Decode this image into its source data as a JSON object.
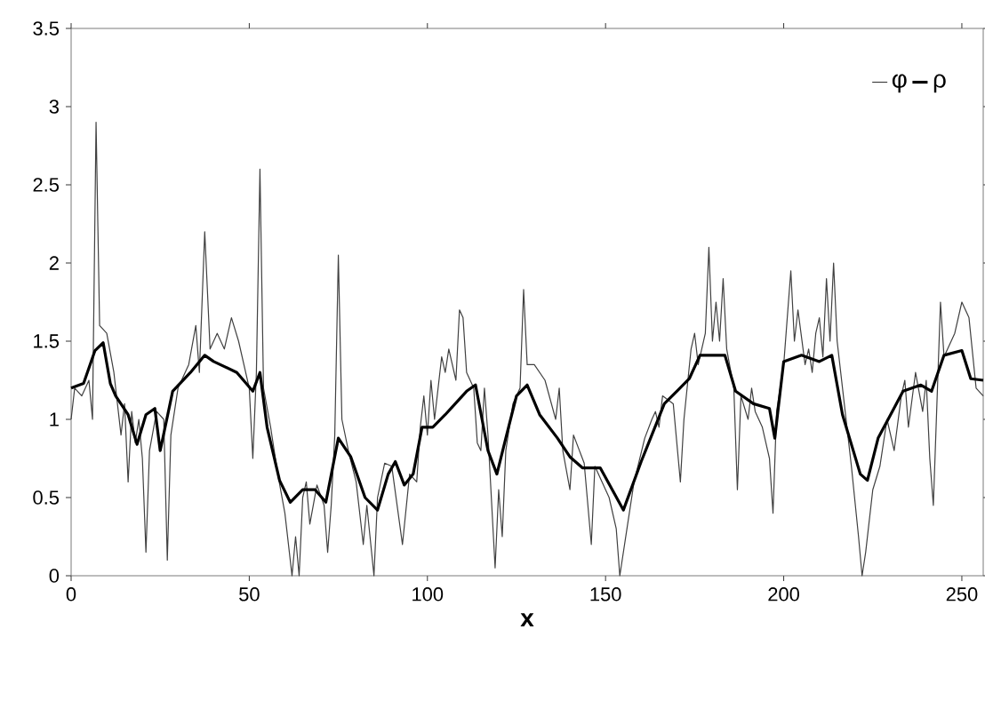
{
  "chart_data": {
    "type": "line",
    "xlabel": "x",
    "xlim": [
      0,
      256
    ],
    "ylim": [
      0,
      3.5
    ],
    "xticks": [
      0,
      50,
      100,
      150,
      200,
      250
    ],
    "yticks": [
      0,
      0.5,
      1,
      1.5,
      2,
      2.5,
      3,
      3.5
    ],
    "grid": false,
    "legend": "top right",
    "marker": "none",
    "line_style": "solid",
    "series": [
      {
        "name": "φ",
        "color": "#404040",
        "x": [
          0,
          1,
          3,
          5,
          6,
          7,
          8,
          10,
          12,
          14,
          15,
          16,
          17,
          18,
          19,
          20,
          21,
          22,
          24,
          26,
          27,
          28,
          30,
          33,
          35,
          36,
          37.5,
          39,
          41,
          43,
          45,
          47,
          50,
          51,
          52,
          53,
          54,
          56,
          58,
          60,
          62,
          63,
          64,
          65,
          66,
          67,
          69,
          71,
          72,
          73,
          74,
          75,
          76,
          78,
          80,
          82,
          83,
          85,
          86,
          88,
          90,
          93,
          95,
          97,
          98,
          99,
          100,
          101,
          102,
          104,
          105,
          106,
          108,
          109,
          110,
          111,
          113,
          114,
          115,
          116,
          117,
          119,
          120,
          121,
          122,
          124,
          126,
          127,
          128,
          130,
          133,
          136,
          137,
          138,
          140,
          141,
          144,
          146,
          147,
          149,
          151,
          153,
          154,
          156,
          158,
          161,
          163,
          164,
          165,
          166,
          169,
          171,
          172,
          174,
          175,
          176,
          178,
          179,
          180,
          181,
          182,
          183,
          184,
          186,
          187,
          188,
          190,
          191,
          192,
          194,
          196,
          197,
          198,
          200,
          202,
          203,
          204,
          206,
          207,
          208,
          209,
          210,
          211,
          212,
          213,
          214,
          215,
          217,
          218,
          219,
          221,
          222,
          223,
          225,
          227,
          229,
          231,
          233,
          234,
          235,
          237,
          239,
          240,
          241,
          242,
          243,
          244,
          245,
          247,
          248,
          250,
          252,
          254,
          256
        ],
        "values": [
          1.0,
          1.2,
          1.15,
          1.25,
          1.0,
          2.9,
          1.6,
          1.55,
          1.3,
          0.9,
          1.1,
          0.6,
          1.05,
          0.85,
          1.0,
          0.75,
          0.15,
          0.8,
          1.05,
          1.0,
          0.1,
          0.9,
          1.2,
          1.35,
          1.6,
          1.3,
          2.2,
          1.45,
          1.55,
          1.45,
          1.65,
          1.5,
          1.2,
          0.75,
          1.3,
          2.6,
          1.2,
          0.95,
          0.65,
          0.4,
          0.0,
          0.25,
          0.0,
          0.5,
          0.6,
          0.33,
          0.58,
          0.45,
          0.15,
          0.45,
          0.9,
          2.05,
          1.0,
          0.78,
          0.6,
          0.2,
          0.45,
          0.0,
          0.5,
          0.72,
          0.7,
          0.2,
          0.65,
          0.6,
          0.95,
          1.15,
          0.9,
          1.25,
          1.0,
          1.4,
          1.3,
          1.45,
          1.25,
          1.7,
          1.65,
          1.3,
          1.2,
          0.85,
          0.8,
          1.2,
          0.9,
          0.05,
          0.55,
          0.25,
          0.8,
          1.1,
          1.2,
          1.83,
          1.35,
          1.35,
          1.25,
          1.0,
          1.2,
          0.8,
          0.55,
          0.9,
          0.72,
          0.2,
          0.7,
          0.6,
          0.5,
          0.3,
          0.0,
          0.3,
          0.6,
          0.88,
          1.0,
          1.05,
          0.95,
          1.15,
          1.1,
          0.6,
          1.0,
          1.45,
          1.55,
          1.35,
          1.55,
          2.1,
          1.5,
          1.75,
          1.5,
          1.9,
          1.45,
          1.2,
          0.55,
          1.15,
          1.0,
          1.2,
          1.05,
          0.95,
          0.75,
          0.4,
          1.05,
          1.35,
          1.95,
          1.5,
          1.7,
          1.35,
          1.45,
          1.3,
          1.55,
          1.65,
          1.4,
          1.9,
          1.5,
          2.0,
          1.5,
          1.1,
          0.9,
          0.7,
          0.25,
          0.0,
          0.15,
          0.55,
          0.7,
          1.0,
          0.8,
          1.15,
          1.25,
          0.95,
          1.3,
          1.05,
          1.25,
          0.75,
          0.45,
          1.1,
          1.75,
          1.4,
          1.5,
          1.55,
          1.75,
          1.65,
          1.2,
          1.15
        ]
      },
      {
        "name": "ρ",
        "color": "#000000",
        "x": [
          0,
          3.5,
          6.7,
          9,
          11,
          12.5,
          16,
          18.5,
          21,
          23.5,
          25,
          28.5,
          33.5,
          37.5,
          40,
          46.5,
          51,
          53,
          55,
          58.5,
          61.5,
          65,
          68.5,
          71.5,
          75,
          78.5,
          82.5,
          86,
          89,
          91,
          93.5,
          96,
          98.5,
          101.5,
          105,
          111,
          113.5,
          117,
          119.5,
          122,
          125,
          128,
          131.5,
          136.5,
          140,
          143.5,
          148.5,
          155,
          160,
          166.5,
          173.5,
          176.5,
          183.5,
          186.5,
          191.5,
          196,
          197.5,
          200,
          205,
          210,
          213.5,
          216.5,
          221.5,
          223.5,
          226.5,
          230,
          233.5,
          238.5,
          241.5,
          245,
          250,
          252.5,
          256
        ],
        "values": [
          1.2,
          1.23,
          1.44,
          1.49,
          1.23,
          1.15,
          1.03,
          0.84,
          1.03,
          1.07,
          0.8,
          1.18,
          1.3,
          1.41,
          1.37,
          1.3,
          1.18,
          1.3,
          0.95,
          0.61,
          0.47,
          0.55,
          0.55,
          0.47,
          0.88,
          0.76,
          0.5,
          0.42,
          0.65,
          0.73,
          0.58,
          0.65,
          0.95,
          0.95,
          1.03,
          1.18,
          1.22,
          0.8,
          0.65,
          0.88,
          1.15,
          1.22,
          1.03,
          0.88,
          0.76,
          0.69,
          0.69,
          0.42,
          0.73,
          1.1,
          1.26,
          1.41,
          1.41,
          1.18,
          1.1,
          1.07,
          0.88,
          1.37,
          1.41,
          1.37,
          1.41,
          1.03,
          0.65,
          0.61,
          0.88,
          1.03,
          1.18,
          1.22,
          1.18,
          1.41,
          1.44,
          1.26,
          1.25
        ]
      }
    ]
  }
}
